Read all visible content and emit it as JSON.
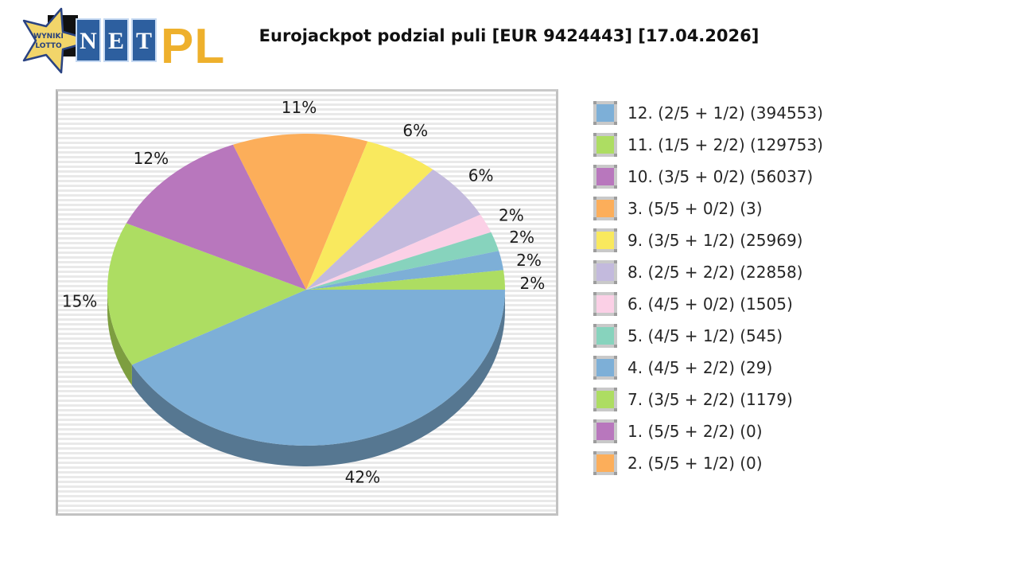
{
  "header": {
    "title": "Eurojackpot podzial puli [EUR 9424443] [17.04.2026]",
    "logo": {
      "star_text_line1": "WYNIKI",
      "star_text_line2": "LOTTO",
      "net_letters": [
        "N",
        "E",
        "T"
      ],
      "pl_text": "PL",
      "colors": {
        "star_fill": "#f2d56a",
        "star_outline": "#2a4382",
        "star_text": "#27407c",
        "net_box": "#2d5f9f",
        "net_box_border": "#c6d9f2",
        "net_letter": "#ffffff",
        "pl": "#eeb02c",
        "backdrop": "#111111"
      }
    }
  },
  "chart_data": {
    "type": "pie",
    "title": "Eurojackpot podzial puli [EUR 9424443] [17.04.2026]",
    "legend_position": "right",
    "start_angle_deg_clockwise_from_east": 0,
    "style": "3d-pie",
    "slices": [
      {
        "tier": "12. (2/5 + 1/2) (394553)",
        "percent": 42,
        "percent_label": "42%",
        "color": "#7dafd7",
        "side_color": "#567791"
      },
      {
        "tier": "11. (1/5 + 2/2) (129753)",
        "percent": 15,
        "percent_label": "15%",
        "color": "#addd62",
        "side_color": "#7d9e40"
      },
      {
        "tier": "10. (3/5 + 0/2) (56037)",
        "percent": 12,
        "percent_label": "12%",
        "color": "#b877bd"
      },
      {
        "tier": "3. (5/5 + 0/2) (3)",
        "percent": 11,
        "percent_label": "11%",
        "color": "#fcae5a"
      },
      {
        "tier": "9. (3/5 + 1/2) (25969)",
        "percent": 6,
        "percent_label": "6%",
        "color": "#f9e95e"
      },
      {
        "tier": "8. (2/5 + 2/2) (22858)",
        "percent": 6,
        "percent_label": "6%",
        "color": "#c3badd"
      },
      {
        "tier": "6. (4/5 + 0/2) (1505)",
        "percent": 2,
        "percent_label": "2%",
        "color": "#fbd0e6"
      },
      {
        "tier": "5. (4/5 + 1/2) (545)",
        "percent": 2,
        "percent_label": "2%",
        "color": "#87d3bd"
      },
      {
        "tier": "4. (4/5 + 2/2) (29)",
        "percent": 2,
        "percent_label": "2%",
        "color": "#7dafd7"
      },
      {
        "tier": "7. (3/5 + 2/2) (1179)",
        "percent": 2,
        "percent_label": "2%",
        "color": "#addd62"
      },
      {
        "tier": "1. (5/5 + 2/2) (0)",
        "percent": 0,
        "percent_label": "",
        "color": "#b877bd"
      },
      {
        "tier": "2. (5/5 + 1/2) (0)",
        "percent": 0,
        "percent_label": "",
        "color": "#fcae5a"
      }
    ]
  }
}
